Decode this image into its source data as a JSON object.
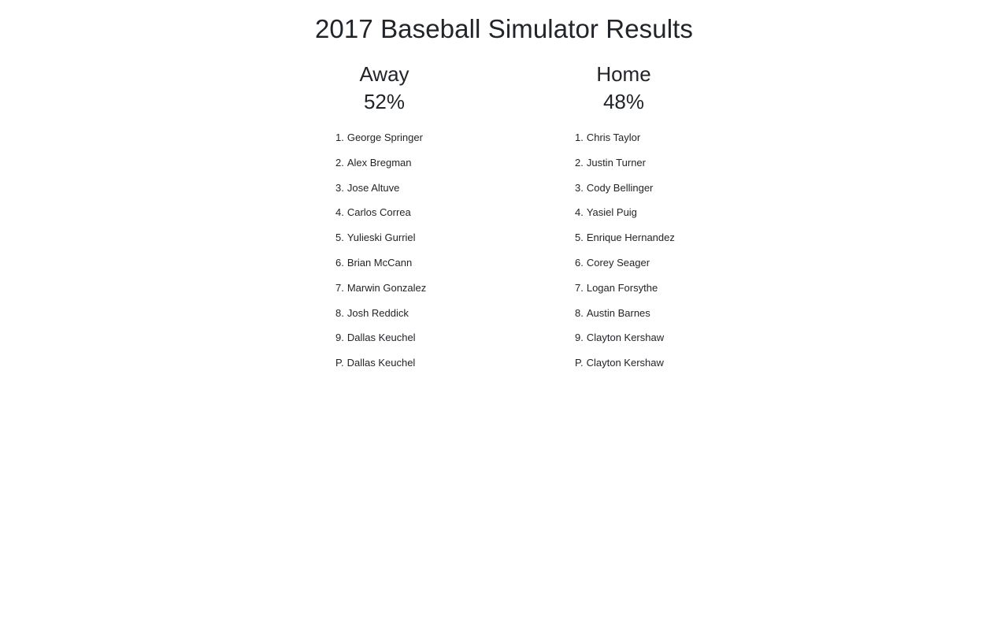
{
  "page": {
    "title": "2017 Baseball Simulator Results"
  },
  "away": {
    "label": "Away",
    "win_pct": "52%",
    "lineup": [
      {
        "slot": "1.",
        "player": "George Springer"
      },
      {
        "slot": "2.",
        "player": "Alex Bregman"
      },
      {
        "slot": "3.",
        "player": "Jose Altuve"
      },
      {
        "slot": "4.",
        "player": "Carlos Correa"
      },
      {
        "slot": "5.",
        "player": "Yulieski Gurriel"
      },
      {
        "slot": "6.",
        "player": "Brian McCann"
      },
      {
        "slot": "7.",
        "player": "Marwin Gonzalez"
      },
      {
        "slot": "8.",
        "player": "Josh Reddick"
      },
      {
        "slot": "9.",
        "player": "Dallas Keuchel"
      },
      {
        "slot": "P.",
        "player": "Dallas Keuchel"
      }
    ]
  },
  "home": {
    "label": "Home",
    "win_pct": "48%",
    "lineup": [
      {
        "slot": "1.",
        "player": "Chris Taylor"
      },
      {
        "slot": "2.",
        "player": "Justin Turner"
      },
      {
        "slot": "3.",
        "player": "Cody Bellinger"
      },
      {
        "slot": "4.",
        "player": "Yasiel Puig"
      },
      {
        "slot": "5.",
        "player": "Enrique Hernandez"
      },
      {
        "slot": "6.",
        "player": "Corey Seager"
      },
      {
        "slot": "7.",
        "player": "Logan Forsythe"
      },
      {
        "slot": "8.",
        "player": "Austin Barnes"
      },
      {
        "slot": "9.",
        "player": "Clayton Kershaw"
      },
      {
        "slot": "P.",
        "player": "Clayton Kershaw"
      }
    ]
  }
}
